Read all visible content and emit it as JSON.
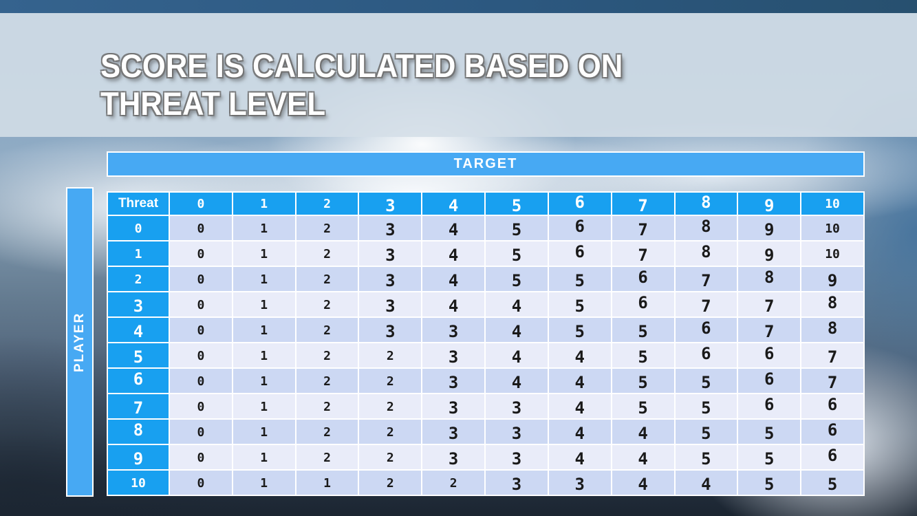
{
  "slide": {
    "title_line1": "SCORE IS CALCULATED BASED ON",
    "title_line2": "THREAT LEVEL"
  },
  "matrix": {
    "target_label": "TARGET",
    "player_label": "PLAYER",
    "corner_label": "Threat",
    "column_headers": [
      "0",
      "1",
      "2",
      "3",
      "4",
      "5",
      "6",
      "7",
      "8",
      "9",
      "10"
    ],
    "rows": [
      {
        "threat": "0",
        "scores": [
          0,
          1,
          2,
          3,
          4,
          5,
          6,
          7,
          8,
          9,
          10
        ]
      },
      {
        "threat": "1",
        "scores": [
          0,
          1,
          2,
          3,
          4,
          5,
          6,
          7,
          8,
          9,
          10
        ]
      },
      {
        "threat": "2",
        "scores": [
          0,
          1,
          2,
          3,
          4,
          5,
          5,
          6,
          7,
          8,
          9
        ]
      },
      {
        "threat": "3",
        "scores": [
          0,
          1,
          2,
          3,
          4,
          4,
          5,
          6,
          7,
          7,
          8
        ]
      },
      {
        "threat": "4",
        "scores": [
          0,
          1,
          2,
          3,
          3,
          4,
          5,
          5,
          6,
          7,
          8
        ]
      },
      {
        "threat": "5",
        "scores": [
          0,
          1,
          2,
          2,
          3,
          4,
          4,
          5,
          6,
          6,
          7
        ]
      },
      {
        "threat": "6",
        "scores": [
          0,
          1,
          2,
          2,
          3,
          4,
          4,
          5,
          5,
          6,
          7
        ]
      },
      {
        "threat": "7",
        "scores": [
          0,
          1,
          2,
          2,
          3,
          3,
          4,
          5,
          5,
          6,
          6
        ]
      },
      {
        "threat": "8",
        "scores": [
          0,
          1,
          2,
          2,
          3,
          3,
          4,
          4,
          5,
          5,
          6
        ]
      },
      {
        "threat": "9",
        "scores": [
          0,
          1,
          2,
          2,
          3,
          3,
          4,
          4,
          5,
          5,
          6
        ]
      },
      {
        "threat": "10",
        "scores": [
          0,
          1,
          1,
          2,
          2,
          3,
          3,
          4,
          4,
          5,
          5
        ]
      }
    ]
  },
  "chart_data": {
    "type": "table",
    "title": "Score by player threat level vs target threat level",
    "row_axis": "PLAYER (Threat)",
    "column_axis": "TARGET",
    "columns": [
      0,
      1,
      2,
      3,
      4,
      5,
      6,
      7,
      8,
      9,
      10
    ],
    "row_labels": [
      0,
      1,
      2,
      3,
      4,
      5,
      6,
      7,
      8,
      9,
      10
    ],
    "values": [
      [
        0,
        1,
        2,
        3,
        4,
        5,
        6,
        7,
        8,
        9,
        10
      ],
      [
        0,
        1,
        2,
        3,
        4,
        5,
        6,
        7,
        8,
        9,
        10
      ],
      [
        0,
        1,
        2,
        3,
        4,
        5,
        5,
        6,
        7,
        8,
        9
      ],
      [
        0,
        1,
        2,
        3,
        4,
        4,
        5,
        6,
        7,
        7,
        8
      ],
      [
        0,
        1,
        2,
        3,
        3,
        4,
        5,
        5,
        6,
        7,
        8
      ],
      [
        0,
        1,
        2,
        2,
        3,
        4,
        4,
        5,
        6,
        6,
        7
      ],
      [
        0,
        1,
        2,
        2,
        3,
        4,
        4,
        5,
        5,
        6,
        7
      ],
      [
        0,
        1,
        2,
        2,
        3,
        3,
        4,
        5,
        5,
        6,
        6
      ],
      [
        0,
        1,
        2,
        2,
        3,
        3,
        4,
        4,
        5,
        5,
        6
      ],
      [
        0,
        1,
        2,
        2,
        3,
        3,
        4,
        4,
        5,
        5,
        6
      ],
      [
        0,
        1,
        1,
        2,
        2,
        3,
        3,
        4,
        4,
        5,
        5
      ]
    ]
  },
  "colors": {
    "header_blue": "#18a0f0",
    "bar_blue": "#47a9f3",
    "row_even": "#ccd8f3",
    "row_odd": "#e9ecf9",
    "cell_text": "#1a1a1a",
    "table_border": "#ffffff",
    "top_bar": "#2f5d85",
    "title_band": "#d4dee7e0"
  }
}
